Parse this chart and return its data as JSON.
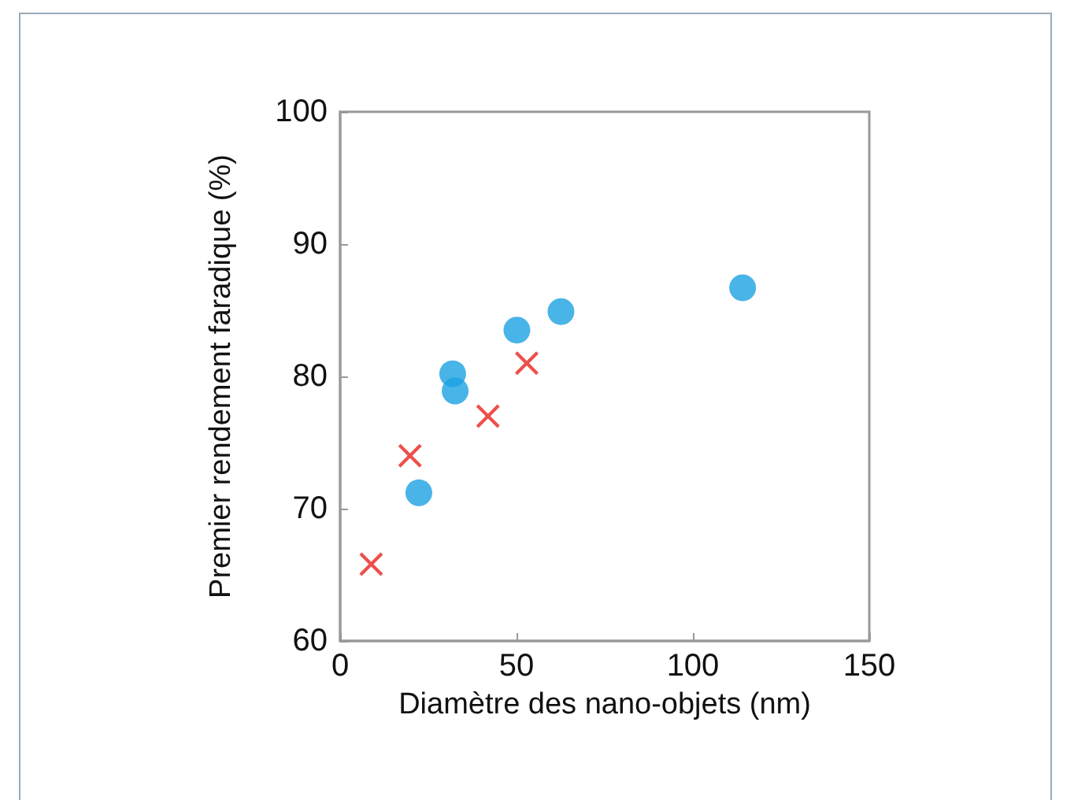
{
  "chart_data": {
    "type": "scatter",
    "xlabel": "Diamètre des nano-objets (nm)",
    "ylabel": "Premier rendement faradique (%)",
    "xlim": [
      0,
      150
    ],
    "xticks": [
      0,
      50,
      100,
      150
    ],
    "ylim": [
      60,
      100
    ],
    "yticks": [
      60,
      70,
      80,
      90,
      100
    ],
    "grid": false,
    "series": [
      {
        "color": "#1ba1e2",
        "marker": "circle",
        "x": [
          22.3,
          31.9,
          32.6,
          50.1,
          62.6,
          114.1
        ],
        "values": [
          71.2,
          80.2,
          78.9,
          83.5,
          84.9,
          86.7
        ]
      },
      {
        "color": "#e8231f",
        "marker": "cross",
        "x": [
          8.8,
          19.8,
          41.9,
          52.9
        ],
        "values": [
          65.8,
          74.0,
          77.0,
          81.0
        ]
      }
    ]
  }
}
